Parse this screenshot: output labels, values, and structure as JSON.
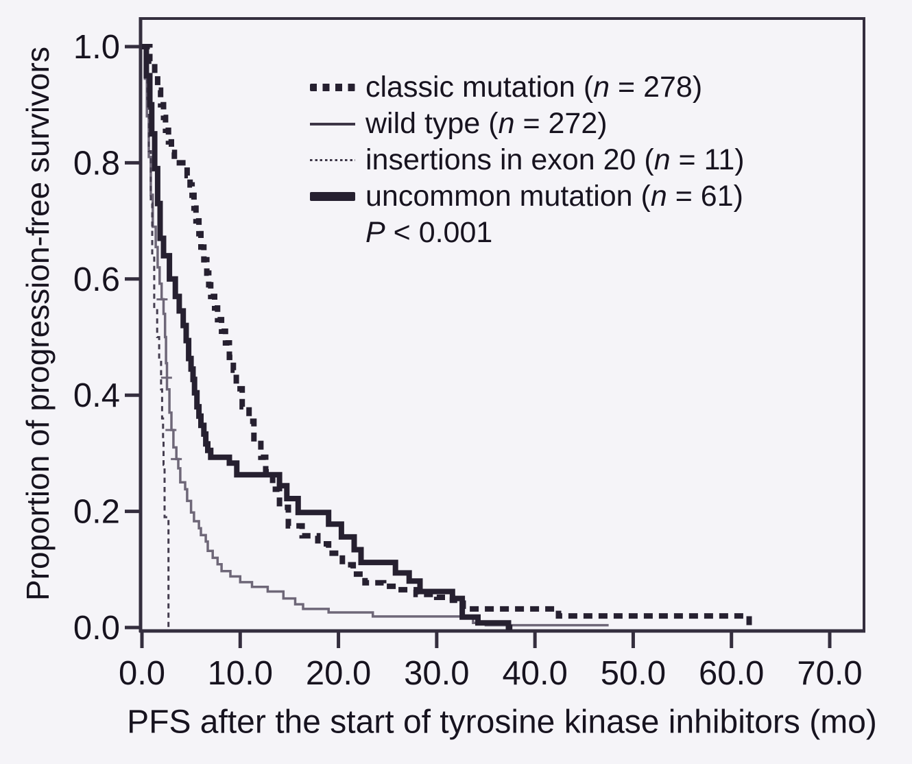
{
  "figure": {
    "background": "#f5f4f8",
    "frame_color": "#342e3e",
    "text_color": "#17131f"
  },
  "axes": {
    "x_title": "PFS after the start of tyrosine kinase inhibitors (mo)",
    "y_title": "Proportion of progression-free survivors",
    "x_ticks": [
      {
        "v": 0,
        "label": "0.0"
      },
      {
        "v": 10,
        "label": "10.0"
      },
      {
        "v": 20,
        "label": "20.0"
      },
      {
        "v": 30,
        "label": "30.0"
      },
      {
        "v": 40,
        "label": "40.0"
      },
      {
        "v": 50,
        "label": "50.0"
      },
      {
        "v": 60,
        "label": "60.0"
      },
      {
        "v": 70,
        "label": "70.0"
      }
    ],
    "y_ticks": [
      {
        "v": 0.0,
        "label": "0.0"
      },
      {
        "v": 0.2,
        "label": "0.2"
      },
      {
        "v": 0.4,
        "label": "0.4"
      },
      {
        "v": 0.6,
        "label": "0.6"
      },
      {
        "v": 0.8,
        "label": "0.8"
      },
      {
        "v": 1.0,
        "label": "1.0"
      }
    ]
  },
  "legend": {
    "items": [
      {
        "pre": "classic mutation (",
        "var": "n",
        "post": " = 278)"
      },
      {
        "pre": "wild type (",
        "var": "n",
        "post": " = 272)"
      },
      {
        "pre": "insertions in exon 20 (",
        "var": "n",
        "post": " = 11)"
      },
      {
        "pre": "uncommon mutation (",
        "var": "n",
        "post": " = 61)"
      }
    ],
    "p_value": {
      "var": "P",
      "post": " < 0.001"
    }
  },
  "chart_data": {
    "type": "line",
    "subtype": "kaplan-meier-step",
    "title": "",
    "xlabel": "PFS after the start of tyrosine kinase inhibitors (mo)",
    "ylabel": "Proportion of progression-free survivors",
    "xlim": [
      0,
      73.7
    ],
    "ylim": [
      0,
      1.0
    ],
    "x_unit": "months",
    "grid": false,
    "legend_position": "upper-right-inside",
    "p_value": "P < 0.001",
    "series": [
      {
        "name": "classic mutation",
        "n": 278,
        "style": "bold-dashed",
        "color": "#262030",
        "width": 8,
        "dash": "13 9",
        "end": 61.8,
        "end_drop": true,
        "points": [
          [
            0,
            1.0
          ],
          [
            0.8,
            0.975
          ],
          [
            1.3,
            0.95
          ],
          [
            1.6,
            0.925
          ],
          [
            1.9,
            0.9
          ],
          [
            2.2,
            0.878
          ],
          [
            2.4,
            0.856
          ],
          [
            2.7,
            0.836
          ],
          [
            3.0,
            0.818
          ],
          [
            3.3,
            0.8
          ],
          [
            4.6,
            0.778
          ],
          [
            4.9,
            0.762
          ],
          [
            5.1,
            0.744
          ],
          [
            5.3,
            0.722
          ],
          [
            5.5,
            0.7
          ],
          [
            5.8,
            0.678
          ],
          [
            6.0,
            0.655
          ],
          [
            6.3,
            0.633
          ],
          [
            6.6,
            0.61
          ],
          [
            6.8,
            0.59
          ],
          [
            7.0,
            0.57
          ],
          [
            7.4,
            0.55
          ],
          [
            7.7,
            0.53
          ],
          [
            8.1,
            0.51
          ],
          [
            8.5,
            0.49
          ],
          [
            8.9,
            0.465
          ],
          [
            9.3,
            0.443
          ],
          [
            9.6,
            0.411
          ],
          [
            10.2,
            0.38
          ],
          [
            10.9,
            0.355
          ],
          [
            11.4,
            0.325
          ],
          [
            12.1,
            0.293
          ],
          [
            12.6,
            0.268
          ],
          [
            13.3,
            0.238
          ],
          [
            14.0,
            0.207
          ],
          [
            14.9,
            0.175
          ],
          [
            16.3,
            0.158
          ],
          [
            17.9,
            0.144
          ],
          [
            19.0,
            0.128
          ],
          [
            20.4,
            0.108
          ],
          [
            21.5,
            0.092
          ],
          [
            22.7,
            0.077
          ],
          [
            24.6,
            0.071
          ],
          [
            26.0,
            0.065
          ],
          [
            27.9,
            0.057
          ],
          [
            30.0,
            0.052
          ],
          [
            31.6,
            0.047
          ],
          [
            32.7,
            0.032
          ],
          [
            42.4,
            0.02
          ]
        ]
      },
      {
        "name": "wild type",
        "n": 272,
        "style": "thin-solid",
        "color": "#6e6778",
        "width": 3.5,
        "dash": null,
        "end": 47.5,
        "end_drop": false,
        "censors": [
          [
            2.05,
            0.565
          ],
          [
            2.5,
            0.43
          ],
          [
            2.95,
            0.34
          ],
          [
            3.5,
            0.29
          ]
        ],
        "points": [
          [
            0,
            1.0
          ],
          [
            0.3,
            0.945
          ],
          [
            0.5,
            0.88
          ],
          [
            0.7,
            0.81
          ],
          [
            0.9,
            0.745
          ],
          [
            1.1,
            0.69
          ],
          [
            1.4,
            0.655
          ],
          [
            1.6,
            0.62
          ],
          [
            1.8,
            0.592
          ],
          [
            2.0,
            0.565
          ],
          [
            2.2,
            0.54
          ],
          [
            2.35,
            0.5
          ],
          [
            2.45,
            0.455
          ],
          [
            2.55,
            0.41
          ],
          [
            2.8,
            0.37
          ],
          [
            3.0,
            0.34
          ],
          [
            3.2,
            0.31
          ],
          [
            3.5,
            0.29
          ],
          [
            3.7,
            0.274
          ],
          [
            3.9,
            0.25
          ],
          [
            4.4,
            0.238
          ],
          [
            4.6,
            0.218
          ],
          [
            5.0,
            0.198
          ],
          [
            5.3,
            0.183
          ],
          [
            5.8,
            0.171
          ],
          [
            6.0,
            0.159
          ],
          [
            6.5,
            0.148
          ],
          [
            6.7,
            0.132
          ],
          [
            7.2,
            0.12
          ],
          [
            7.7,
            0.109
          ],
          [
            8.1,
            0.097
          ],
          [
            9.0,
            0.088
          ],
          [
            10.0,
            0.078
          ],
          [
            11.2,
            0.07
          ],
          [
            12.8,
            0.062
          ],
          [
            14.4,
            0.05
          ],
          [
            15.6,
            0.04
          ],
          [
            16.4,
            0.032
          ],
          [
            19.0,
            0.026
          ],
          [
            23.5,
            0.019
          ],
          [
            33.7,
            0.008
          ],
          [
            35.0,
            0.004
          ]
        ]
      },
      {
        "name": "insertions in exon 20",
        "n": 11,
        "style": "fine-dotted",
        "color": "#443d4f",
        "width": 3,
        "dash": "7.5 6",
        "end": 2.75,
        "end_drop": false,
        "points": [
          [
            0,
            1.0
          ],
          [
            0.55,
            0.91
          ],
          [
            0.7,
            0.82
          ],
          [
            0.9,
            0.73
          ],
          [
            1.05,
            0.64
          ],
          [
            1.25,
            0.55
          ],
          [
            1.55,
            0.5
          ],
          [
            1.75,
            0.46
          ],
          [
            1.95,
            0.41
          ],
          [
            2.05,
            0.36
          ],
          [
            2.15,
            0.32
          ],
          [
            2.2,
            0.28
          ],
          [
            2.3,
            0.19
          ],
          [
            2.7,
            0.0
          ]
        ]
      },
      {
        "name": "uncommon mutation",
        "n": 61,
        "style": "thick-solid",
        "color": "#262030",
        "width": 8,
        "dash": null,
        "end": 37.7,
        "end_drop": false,
        "points": [
          [
            0,
            1.0
          ],
          [
            0.45,
            0.95
          ],
          [
            0.8,
            0.9
          ],
          [
            1.0,
            0.85
          ],
          [
            1.3,
            0.79
          ],
          [
            1.6,
            0.73
          ],
          [
            1.85,
            0.67
          ],
          [
            2.2,
            0.64
          ],
          [
            2.8,
            0.6
          ],
          [
            3.4,
            0.57
          ],
          [
            3.8,
            0.545
          ],
          [
            4.2,
            0.52
          ],
          [
            4.5,
            0.494
          ],
          [
            4.75,
            0.463
          ],
          [
            5.0,
            0.445
          ],
          [
            5.2,
            0.427
          ],
          [
            5.35,
            0.404
          ],
          [
            5.6,
            0.38
          ],
          [
            5.8,
            0.364
          ],
          [
            6.0,
            0.348
          ],
          [
            6.3,
            0.333
          ],
          [
            6.5,
            0.316
          ],
          [
            6.7,
            0.305
          ],
          [
            7.0,
            0.293
          ],
          [
            8.9,
            0.283
          ],
          [
            9.65,
            0.263
          ],
          [
            14.0,
            0.244
          ],
          [
            14.75,
            0.222
          ],
          [
            15.9,
            0.198
          ],
          [
            19.0,
            0.178
          ],
          [
            20.3,
            0.156
          ],
          [
            21.6,
            0.134
          ],
          [
            22.3,
            0.112
          ],
          [
            25.8,
            0.094
          ],
          [
            27.2,
            0.08
          ],
          [
            28.3,
            0.062
          ],
          [
            31.6,
            0.05
          ],
          [
            32.6,
            0.018
          ],
          [
            34.2,
            0.008
          ],
          [
            37.3,
            0.0
          ]
        ]
      }
    ]
  }
}
